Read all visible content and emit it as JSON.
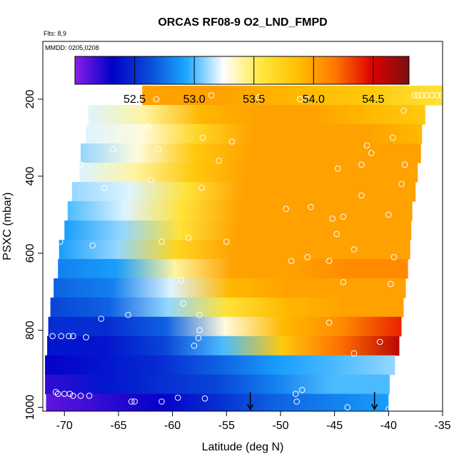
{
  "chart_data": {
    "type": "heatmap",
    "title": "ORCAS RF08-9 O2_LND_FMPD",
    "annotations": [
      "Flts: 8,9",
      "MMDD: 0205,0208"
    ],
    "xlabel": "Latitude (deg N)",
    "ylabel": "PSXC (mbar)",
    "xlim": [
      -72,
      -35
    ],
    "ylim": [
      1010,
      50
    ],
    "x_ticks": [
      -70,
      -65,
      -60,
      -55,
      -50,
      -45,
      -40,
      -35
    ],
    "y_ticks": [
      200,
      400,
      600,
      800,
      1000
    ],
    "colorbar": {
      "range": [
        52.0,
        54.8
      ],
      "ticks": [
        52.5,
        53.0,
        53.5,
        54.0,
        54.5
      ],
      "stops": [
        "#8a1fe8",
        "#0000c8",
        "#0a4ad8",
        "#1aa8ff",
        "#ffffff",
        "#ffe840",
        "#ffc000",
        "#ff7800",
        "#e00000",
        "#7a1010"
      ]
    },
    "layers": [
      {
        "p": 190,
        "lat_start": -62.8,
        "lat_end": -35.0,
        "values": [
          54.0,
          54.0,
          53.9,
          53.8,
          53.6
        ]
      },
      {
        "p": 240,
        "lat_start": -67.8,
        "lat_end": -36.6,
        "values": [
          53.2,
          53.4,
          53.9,
          54.0,
          54.0,
          53.9,
          53.8
        ]
      },
      {
        "p": 290,
        "lat_start": -68.0,
        "lat_end": -36.9,
        "values": [
          53.2,
          53.3,
          53.7,
          54.0,
          54.0,
          54.0,
          53.9
        ]
      },
      {
        "p": 340,
        "lat_start": -68.5,
        "lat_end": -37.0,
        "values": [
          53.1,
          53.3,
          53.8,
          54.0,
          54.0,
          54.0,
          54.0
        ]
      },
      {
        "p": 390,
        "lat_start": -68.6,
        "lat_end": -37.3,
        "values": [
          53.2,
          53.4,
          53.8,
          54.0,
          54.0,
          54.0,
          54.0
        ]
      },
      {
        "p": 440,
        "lat_start": -69.3,
        "lat_end": -37.5,
        "values": [
          53.1,
          53.2,
          53.6,
          54.0,
          54.0,
          54.0,
          54.0
        ]
      },
      {
        "p": 490,
        "lat_start": -69.7,
        "lat_end": -37.8,
        "values": [
          53.0,
          53.2,
          53.6,
          54.0,
          54.0,
          54.0,
          54.0
        ]
      },
      {
        "p": 540,
        "lat_start": -70.0,
        "lat_end": -37.9,
        "values": [
          52.9,
          53.1,
          53.6,
          54.0,
          54.0,
          54.0,
          54.0
        ]
      },
      {
        "p": 590,
        "lat_start": -70.5,
        "lat_end": -38.0,
        "values": [
          52.9,
          53.1,
          53.7,
          54.0,
          54.0,
          54.0,
          54.0
        ]
      },
      {
        "p": 640,
        "lat_start": -70.6,
        "lat_end": -38.2,
        "values": [
          52.8,
          52.9,
          53.4,
          54.0,
          54.0,
          54.1,
          54.1
        ]
      },
      {
        "p": 690,
        "lat_start": -71.0,
        "lat_end": -38.4,
        "values": [
          52.7,
          52.8,
          53.2,
          53.9,
          54.0,
          54.0,
          54.0
        ]
      },
      {
        "p": 740,
        "lat_start": -71.3,
        "lat_end": -38.6,
        "values": [
          52.6,
          52.7,
          53.1,
          53.6,
          53.9,
          54.0,
          54.0
        ]
      },
      {
        "p": 790,
        "lat_start": -71.5,
        "lat_end": -38.8,
        "values": [
          52.5,
          52.5,
          52.7,
          53.3,
          53.9,
          54.1,
          54.4
        ]
      },
      {
        "p": 840,
        "lat_start": -71.6,
        "lat_end": -39.0,
        "values": [
          52.4,
          52.4,
          52.6,
          53.0,
          53.8,
          54.2,
          54.6
        ]
      },
      {
        "p": 890,
        "lat_start": -71.8,
        "lat_end": -39.4,
        "values": [
          52.3,
          52.4,
          52.5,
          52.7,
          52.9,
          53.0,
          53.1
        ]
      },
      {
        "p": 940,
        "lat_start": -71.8,
        "lat_end": -39.9,
        "values": [
          52.2,
          52.4,
          52.5,
          52.6,
          52.8,
          53.0,
          53.0
        ]
      },
      {
        "p": 990,
        "lat_start": -71.7,
        "lat_end": -40.0,
        "values": [
          52.1,
          52.2,
          52.3,
          52.5,
          52.7,
          52.8,
          52.9
        ]
      }
    ],
    "obs_points": [
      [
        -70.8,
        960
      ],
      [
        -70.6,
        965
      ],
      [
        -70.0,
        965
      ],
      [
        -69.5,
        965
      ],
      [
        -69.2,
        970
      ],
      [
        -68.5,
        970
      ],
      [
        -67.7,
        970
      ],
      [
        -71.1,
        815
      ],
      [
        -70.3,
        815
      ],
      [
        -69.6,
        815
      ],
      [
        -69.2,
        815
      ],
      [
        -68.0,
        818
      ],
      [
        -66.6,
        770
      ],
      [
        -64.1,
        760
      ],
      [
        -70.4,
        570
      ],
      [
        -67.4,
        580
      ],
      [
        -61.0,
        570
      ],
      [
        -57.6,
        820
      ],
      [
        -58.0,
        840
      ],
      [
        -57.5,
        760
      ],
      [
        -57.5,
        800
      ],
      [
        -57.3,
        430
      ],
      [
        -61.3,
        330
      ],
      [
        -61.5,
        200
      ],
      [
        -65.5,
        330
      ],
      [
        -67.8,
        220
      ],
      [
        -68.0,
        260
      ],
      [
        -68.5,
        370
      ],
      [
        -66.3,
        430
      ],
      [
        -62.0,
        410
      ],
      [
        -62.2,
        270
      ],
      [
        -59.5,
        975
      ],
      [
        -57.0,
        977
      ],
      [
        -63.8,
        985
      ],
      [
        -63.5,
        985
      ],
      [
        -61.0,
        985
      ],
      [
        -55.7,
        360
      ],
      [
        -54.5,
        310
      ],
      [
        -57.2,
        300
      ],
      [
        -58.5,
        560
      ],
      [
        -59.2,
        670
      ],
      [
        -59.0,
        730
      ],
      [
        -55.0,
        570
      ],
      [
        -52.0,
        195
      ],
      [
        -56.4,
        190
      ],
      [
        -48.2,
        200
      ],
      [
        -47.6,
        200
      ],
      [
        -49.5,
        485
      ],
      [
        -49.0,
        620
      ],
      [
        -47.5,
        610
      ],
      [
        -47.2,
        480
      ],
      [
        -45.2,
        510
      ],
      [
        -44.8,
        550
      ],
      [
        -44.2,
        675
      ],
      [
        -45.5,
        620
      ],
      [
        -43.2,
        590
      ],
      [
        -44.2,
        505
      ],
      [
        -44.7,
        380
      ],
      [
        -42.5,
        370
      ],
      [
        -42.0,
        320
      ],
      [
        -39.8,
        680
      ],
      [
        -39.5,
        610
      ],
      [
        -38.5,
        370
      ],
      [
        -38.8,
        420
      ],
      [
        -38.6,
        230
      ],
      [
        -40.8,
        830
      ],
      [
        -43.2,
        860
      ],
      [
        -45.5,
        780
      ],
      [
        -42.5,
        450
      ],
      [
        -40.0,
        500
      ],
      [
        -39.6,
        300
      ],
      [
        -48.6,
        965
      ],
      [
        -48.5,
        985
      ],
      [
        -48.0,
        955
      ],
      [
        -43.8,
        1000
      ],
      [
        -40.0,
        1005
      ],
      [
        -37.6,
        190
      ],
      [
        -37.3,
        190
      ],
      [
        -36.9,
        190
      ],
      [
        -36.5,
        190
      ],
      [
        -36.0,
        190
      ],
      [
        -35.5,
        190
      ],
      [
        -35.1,
        190
      ],
      [
        -41.6,
        340
      ]
    ],
    "arrows": [
      {
        "x": -52.8,
        "y_from": 960,
        "y_to": 1005
      },
      {
        "x": -41.3,
        "y_from": 960,
        "y_to": 1005
      }
    ]
  }
}
